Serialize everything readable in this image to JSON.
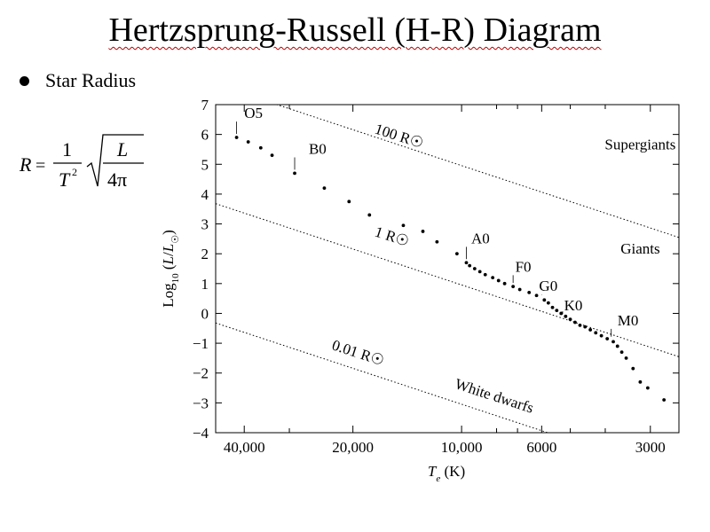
{
  "slide": {
    "title": "Hertzsprung-Russell (H-R) Diagram",
    "title_squiggle_word": "Hertzsprung",
    "bullet": "Star Radius",
    "spellcheck_color": "#c00000"
  },
  "formula": {
    "lhs": "R",
    "eq": "=",
    "num": "1",
    "den": "T",
    "exp": "2",
    "rad_num": "L",
    "rad_den": "4π"
  },
  "chart_data": {
    "type": "scatter",
    "title": "",
    "xlabel": "Te (K)",
    "ylabel": "Log10 (L/L☉)",
    "x_scale": "log",
    "x_reversed": true,
    "xlim": [
      48000,
      2500
    ],
    "ylim": [
      -4,
      7
    ],
    "y_ticks": [
      "7",
      "6",
      "5",
      "4",
      "3",
      "2",
      "1",
      "0",
      "−1",
      "−2",
      "−3",
      "−4"
    ],
    "x_tick_labels": [
      {
        "value": 40000,
        "label": "40,000"
      },
      {
        "value": 20000,
        "label": "20,000"
      },
      {
        "value": 10000,
        "label": "10,000"
      },
      {
        "value": 6000,
        "label": "6000"
      },
      {
        "value": 3000,
        "label": "3000"
      }
    ],
    "x_minor_ticks": [
      30000,
      8000,
      7000,
      5000,
      4000
    ],
    "main_sequence": [
      [
        42000,
        5.9
      ],
      [
        39000,
        5.75
      ],
      [
        36000,
        5.55
      ],
      [
        33500,
        5.3
      ],
      [
        29000,
        4.7
      ],
      [
        24000,
        4.2
      ],
      [
        20500,
        3.75
      ],
      [
        18000,
        3.3
      ],
      [
        14500,
        2.95
      ],
      [
        12800,
        2.75
      ],
      [
        11700,
        2.4
      ],
      [
        10300,
        2.0
      ],
      [
        9700,
        1.7
      ],
      [
        9500,
        1.6
      ],
      [
        9200,
        1.5
      ],
      [
        8900,
        1.4
      ],
      [
        8600,
        1.3
      ],
      [
        8200,
        1.2
      ],
      [
        7900,
        1.1
      ],
      [
        7600,
        1.0
      ],
      [
        7200,
        0.9
      ],
      [
        6900,
        0.8
      ],
      [
        6500,
        0.7
      ],
      [
        6200,
        0.6
      ],
      [
        5900,
        0.45
      ],
      [
        5750,
        0.35
      ],
      [
        5600,
        0.2
      ],
      [
        5450,
        0.1
      ],
      [
        5300,
        0.0
      ],
      [
        5150,
        -0.1
      ],
      [
        5000,
        -0.2
      ],
      [
        4850,
        -0.3
      ],
      [
        4700,
        -0.4
      ],
      [
        4550,
        -0.45
      ],
      [
        4400,
        -0.55
      ],
      [
        4250,
        -0.65
      ],
      [
        4100,
        -0.75
      ],
      [
        3950,
        -0.85
      ],
      [
        3800,
        -0.95
      ],
      [
        3700,
        -1.1
      ],
      [
        3600,
        -1.3
      ],
      [
        3500,
        -1.5
      ],
      [
        3350,
        -1.85
      ],
      [
        3200,
        -2.3
      ],
      [
        3050,
        -2.5
      ],
      [
        2750,
        -2.9
      ]
    ],
    "spectral_labels": [
      {
        "label": "O5",
        "te": 42000,
        "lum": 5.9,
        "tx": 40000,
        "ty": 6.55
      },
      {
        "label": "B0",
        "te": 29000,
        "lum": 4.7,
        "tx": 26500,
        "ty": 5.35
      },
      {
        "label": "A0",
        "te": 9700,
        "lum": 1.7,
        "tx": 9400,
        "ty": 2.35
      },
      {
        "label": "F0",
        "te": 7200,
        "lum": 0.9,
        "tx": 7100,
        "ty": 1.4
      },
      {
        "label": "G0",
        "te": 6000,
        "lum": 0.5,
        "tx": 6100,
        "ty": 0.75
      },
      {
        "label": "K0",
        "te": 5250,
        "lum": -0.05,
        "tx": 5200,
        "ty": 0.1
      },
      {
        "label": "M0",
        "te": 3850,
        "lum": -0.9,
        "tx": 3700,
        "ty": -0.4
      }
    ],
    "radius_lines": [
      {
        "label": "100 R☉",
        "radius_rsun": 100,
        "lx": 17500,
        "ly": 6.05,
        "angle": 18
      },
      {
        "label": "1 R☉",
        "radius_rsun": 1,
        "lx": 17500,
        "ly": 2.6,
        "angle": 18
      },
      {
        "label": "0.01 R☉",
        "radius_rsun": 0.01,
        "lx": 23000,
        "ly": -1.2,
        "angle": 18
      }
    ],
    "region_labels": [
      {
        "label": "Supergiants",
        "te": 3200,
        "lum": 5.5
      },
      {
        "label": "Giants",
        "te": 3200,
        "lum": 2.0
      },
      {
        "label": "White dwarfs",
        "te": 10500,
        "lum": -2.5,
        "angle": 18
      }
    ],
    "grid": false
  }
}
